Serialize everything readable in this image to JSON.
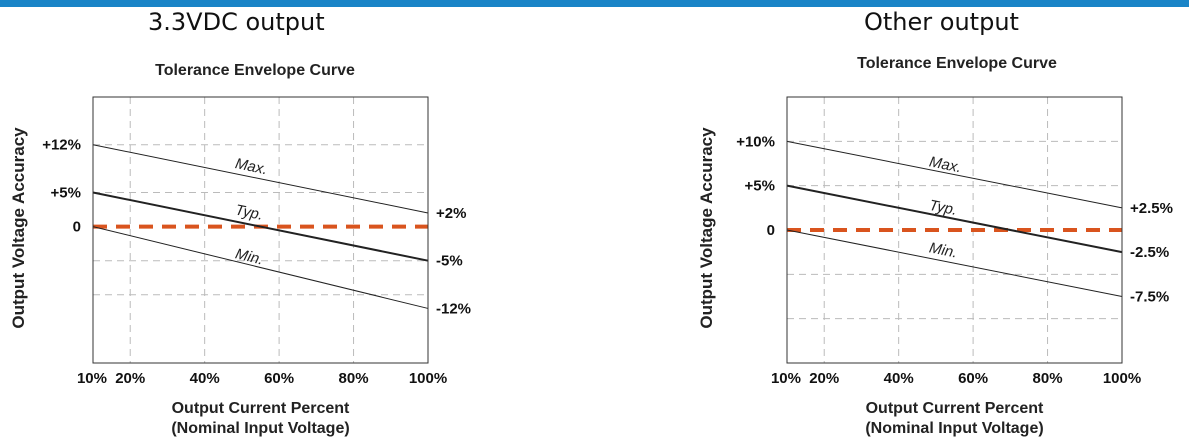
{
  "headings": {
    "left": "3.3VDC output",
    "right": "Other output"
  },
  "colors": {
    "top_rule": "#1a84c7",
    "reference_line": "#d9541e",
    "curve": "#222222",
    "grid": "#bbbbbb"
  },
  "chart_data": [
    {
      "type": "line",
      "title": "Tolerance Envelope Curve",
      "xlabel": "Output Current Percent",
      "xlabel2": "(Nominal Input Voltage)",
      "ylabel": "Output Voltage Accuracy",
      "xlim": [
        10,
        100
      ],
      "ylim": [
        -20,
        19
      ],
      "grid": true,
      "x_ticks": [
        {
          "value": 10,
          "label": "10%"
        },
        {
          "value": 20,
          "label": "20%"
        },
        {
          "value": 40,
          "label": "40%"
        },
        {
          "value": 60,
          "label": "60%"
        },
        {
          "value": 80,
          "label": "80%"
        },
        {
          "value": 100,
          "label": "100%"
        }
      ],
      "y_ticks": [
        {
          "value": 12,
          "label": "+12%"
        },
        {
          "value": 5,
          "label": "+5%"
        },
        {
          "value": 0,
          "label": "0"
        }
      ],
      "right_labels": [
        {
          "value": 2,
          "label": "+2%"
        },
        {
          "value": -5,
          "label": "-5%"
        },
        {
          "value": -12,
          "label": "-12%"
        }
      ],
      "gridlines_x": [
        20,
        40,
        60,
        80
      ],
      "gridlines_y": [
        12,
        5,
        -5,
        -10
      ],
      "reference_line": {
        "y": 0
      },
      "series": [
        {
          "name": "Max.",
          "x": [
            10,
            100
          ],
          "y": [
            12,
            2
          ],
          "label_at": [
            48,
            8.6
          ],
          "width": 1
        },
        {
          "name": "Typ.",
          "x": [
            10,
            100
          ],
          "y": [
            5,
            -5
          ],
          "label_at": [
            48,
            1.8
          ],
          "width": 2
        },
        {
          "name": "Min.",
          "x": [
            10,
            100
          ],
          "y": [
            0,
            -12
          ],
          "label_at": [
            48,
            -4.6
          ],
          "width": 1
        }
      ]
    },
    {
      "type": "line",
      "title": "Tolerance Envelope Curve",
      "xlabel": "Output Current Percent",
      "xlabel2": "(Nominal Input Voltage)",
      "ylabel": "Output Voltage Accuracy",
      "xlim": [
        10,
        100
      ],
      "ylim": [
        -15,
        15
      ],
      "grid": true,
      "x_ticks": [
        {
          "value": 10,
          "label": "10%"
        },
        {
          "value": 20,
          "label": "20%"
        },
        {
          "value": 40,
          "label": "40%"
        },
        {
          "value": 60,
          "label": "60%"
        },
        {
          "value": 80,
          "label": "80%"
        },
        {
          "value": 100,
          "label": "100%"
        }
      ],
      "y_ticks": [
        {
          "value": 10,
          "label": "+10%"
        },
        {
          "value": 5,
          "label": "+5%"
        },
        {
          "value": 0,
          "label": "0"
        }
      ],
      "right_labels": [
        {
          "value": 2.5,
          "label": "+2.5%"
        },
        {
          "value": -2.5,
          "label": "-2.5%"
        },
        {
          "value": -7.5,
          "label": "-7.5%"
        }
      ],
      "gridlines_x": [
        20,
        40,
        60,
        80
      ],
      "gridlines_y": [
        10,
        5,
        -5,
        -10
      ],
      "reference_line": {
        "y": 0
      },
      "series": [
        {
          "name": "Max.",
          "x": [
            10,
            100
          ],
          "y": [
            10,
            2.5
          ],
          "label_at": [
            48,
            7.2
          ],
          "width": 1
        },
        {
          "name": "Typ.",
          "x": [
            10,
            100
          ],
          "y": [
            5,
            -2.5
          ],
          "label_at": [
            48,
            2.3
          ],
          "width": 2
        },
        {
          "name": "Min.",
          "x": [
            10,
            100
          ],
          "y": [
            0,
            -7.5
          ],
          "label_at": [
            48,
            -2.5
          ],
          "width": 1
        }
      ]
    }
  ]
}
